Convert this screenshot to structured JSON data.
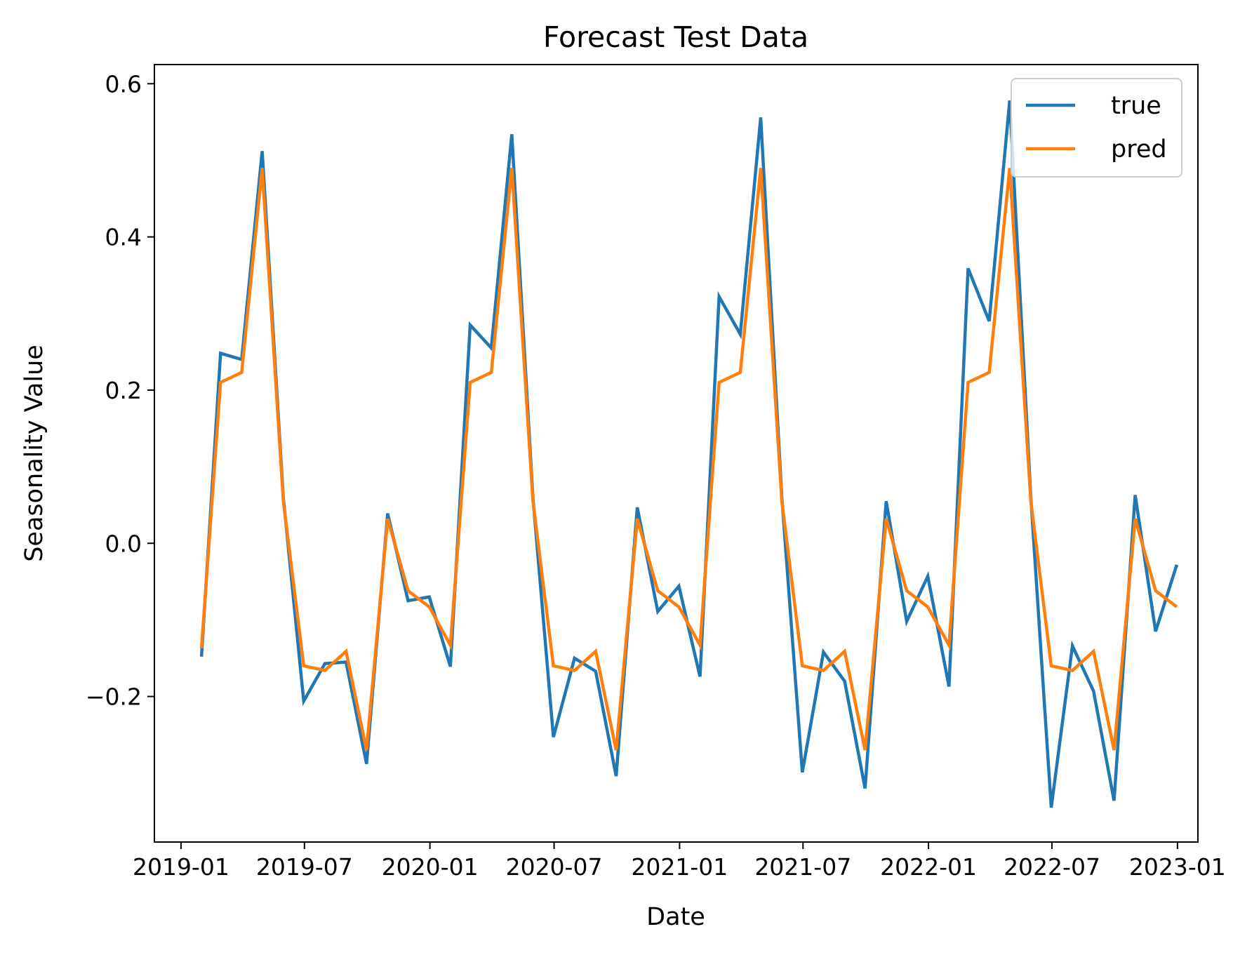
{
  "chart_data": {
    "type": "line",
    "title": "Forecast Test Data",
    "xlabel": "Date",
    "ylabel": "Seasonality Value",
    "x_ticks": [
      {
        "value": "2019-01",
        "label": "2019-01"
      },
      {
        "value": "2019-07",
        "label": "2019-07"
      },
      {
        "value": "2020-01",
        "label": "2020-01"
      },
      {
        "value": "2020-07",
        "label": "2020-07"
      },
      {
        "value": "2021-01",
        "label": "2021-01"
      },
      {
        "value": "2021-07",
        "label": "2021-07"
      },
      {
        "value": "2022-01",
        "label": "2022-01"
      },
      {
        "value": "2022-07",
        "label": "2022-07"
      },
      {
        "value": "2023-01",
        "label": "2023-01"
      }
    ],
    "y_ticks": [
      {
        "value": -0.2,
        "label": "−0.2"
      },
      {
        "value": 0.0,
        "label": "0.0"
      },
      {
        "value": 0.2,
        "label": "0.2"
      },
      {
        "value": 0.4,
        "label": "0.4"
      },
      {
        "value": 0.6,
        "label": "0.6"
      }
    ],
    "xlim": [
      "2018-11-23",
      "2023-01-31"
    ],
    "ylim": [
      -0.39,
      0.625
    ],
    "grid": false,
    "legend": {
      "position": "top-right"
    },
    "x": [
      "2019-01-31",
      "2019-02-28",
      "2019-03-31",
      "2019-04-30",
      "2019-05-31",
      "2019-06-30",
      "2019-07-31",
      "2019-08-31",
      "2019-09-30",
      "2019-10-31",
      "2019-11-30",
      "2019-12-31",
      "2020-01-31",
      "2020-02-29",
      "2020-03-31",
      "2020-04-30",
      "2020-05-31",
      "2020-06-30",
      "2020-07-31",
      "2020-08-31",
      "2020-09-30",
      "2020-10-31",
      "2020-11-30",
      "2020-12-31",
      "2021-01-31",
      "2021-02-28",
      "2021-03-31",
      "2021-04-30",
      "2021-05-31",
      "2021-06-30",
      "2021-07-31",
      "2021-08-31",
      "2021-09-30",
      "2021-10-31",
      "2021-11-30",
      "2021-12-31",
      "2022-01-31",
      "2022-02-28",
      "2022-03-31",
      "2022-04-30",
      "2022-05-31",
      "2022-06-30",
      "2022-07-31",
      "2022-08-31",
      "2022-09-30",
      "2022-10-31",
      "2022-11-30",
      "2022-12-31"
    ],
    "series": [
      {
        "name": "true",
        "color": "#1f77b4",
        "values": [
          -0.148,
          0.248,
          0.24,
          0.512,
          0.06,
          -0.206,
          -0.157,
          -0.155,
          -0.288,
          0.039,
          -0.075,
          -0.07,
          -0.161,
          0.285,
          0.255,
          0.534,
          0.06,
          -0.253,
          -0.15,
          -0.167,
          -0.304,
          0.047,
          -0.089,
          -0.056,
          -0.174,
          0.322,
          0.273,
          0.556,
          0.06,
          -0.299,
          -0.142,
          -0.18,
          -0.32,
          0.055,
          -0.102,
          -0.043,
          -0.187,
          0.359,
          0.29,
          0.578,
          0.06,
          -0.345,
          -0.134,
          -0.193,
          -0.336,
          0.063,
          -0.115,
          -0.028
        ]
      },
      {
        "name": "pred",
        "color": "#ff7f0e",
        "values": [
          -0.137,
          0.21,
          0.223,
          0.49,
          0.055,
          -0.16,
          -0.166,
          -0.141,
          -0.27,
          0.032,
          -0.062,
          -0.083,
          -0.133,
          0.21,
          0.223,
          0.49,
          0.055,
          -0.16,
          -0.166,
          -0.141,
          -0.27,
          0.032,
          -0.062,
          -0.083,
          -0.133,
          0.21,
          0.223,
          0.49,
          0.055,
          -0.16,
          -0.166,
          -0.141,
          -0.27,
          0.032,
          -0.062,
          -0.083,
          -0.133,
          0.21,
          0.223,
          0.49,
          0.055,
          -0.16,
          -0.166,
          -0.141,
          -0.27,
          0.032,
          -0.062,
          -0.083
        ]
      }
    ]
  }
}
